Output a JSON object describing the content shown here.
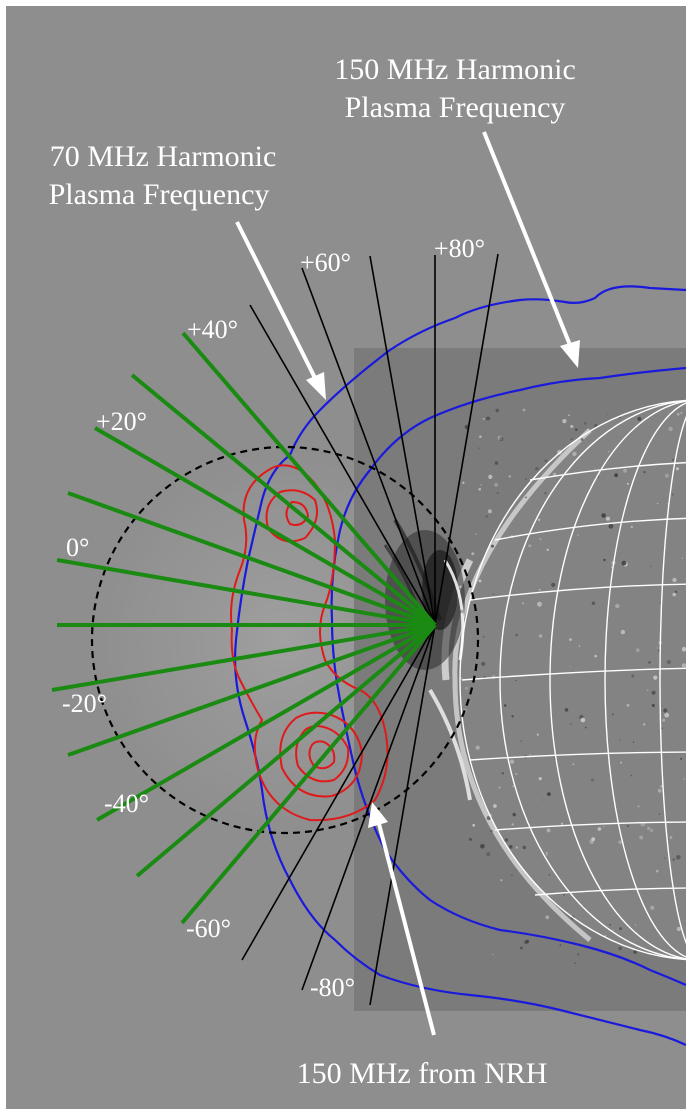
{
  "labels": {
    "harmonic_150": [
      "150 MHz Harmonic",
      "Plasma Frequency"
    ],
    "harmonic_70": [
      "70 MHz Harmonic",
      "Plasma Frequency"
    ],
    "nrh_150": "150 MHz from NRH"
  },
  "angle_labels": {
    "p80": "+80°",
    "p60": "+60°",
    "p40": "+40°",
    "p20": "+20°",
    "z0": "0°",
    "m20": "-20°",
    "m40": "-40°",
    "m60": "-60°",
    "m80": "-80°"
  },
  "colors": {
    "background": "#8e8e8e",
    "image_panel": "#7b7b7b",
    "green_rays": "#1a8a12",
    "black_rays": "#000000",
    "blue_contour": "#1a1adc",
    "red_contour": "#e01a1a",
    "text": "#ffffff"
  }
}
